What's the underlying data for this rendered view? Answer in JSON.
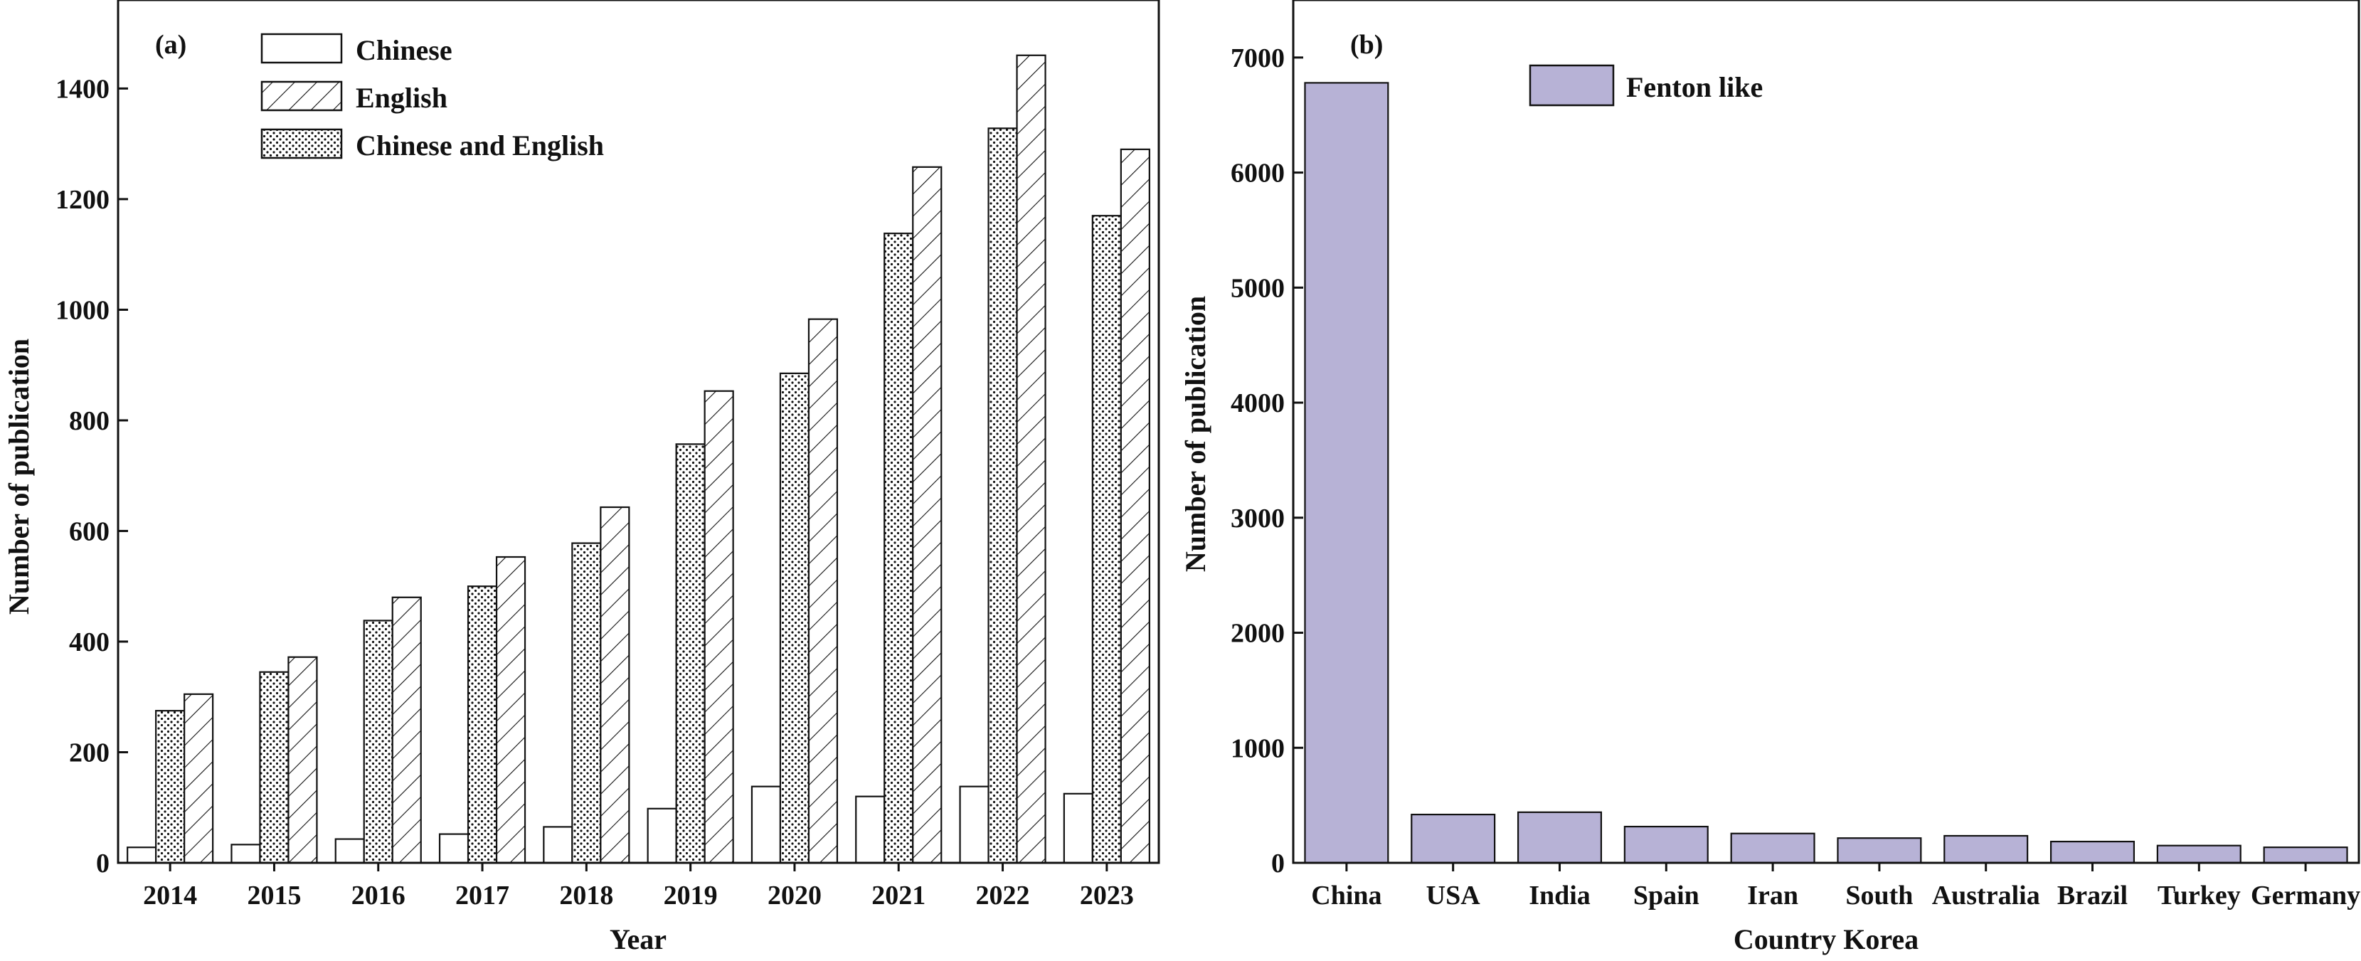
{
  "chart_data": [
    {
      "type": "bar",
      "panel_label": "(a)",
      "xlabel": "Year",
      "ylabel": "Number of publication",
      "ylim": [
        0,
        1560
      ],
      "yticks": [
        0,
        200,
        400,
        600,
        800,
        1000,
        1200,
        1400
      ],
      "grid": false,
      "legend_position": "top-left",
      "categories": [
        "2014",
        "2015",
        "2016",
        "2017",
        "2018",
        "2019",
        "2020",
        "2021",
        "2022",
        "2023"
      ],
      "series": [
        {
          "name": "Chinese",
          "pattern": "blank",
          "values": [
            28,
            33,
            43,
            52,
            65,
            98,
            138,
            120,
            138,
            125
          ]
        },
        {
          "name": "Chinese and English",
          "pattern": "dots",
          "values": [
            275,
            345,
            438,
            500,
            578,
            757,
            885,
            1138,
            1328,
            1170
          ]
        },
        {
          "name": "English",
          "pattern": "hatch",
          "values": [
            305,
            372,
            480,
            553,
            643,
            853,
            983,
            1258,
            1460,
            1290
          ]
        }
      ],
      "legend_items": [
        "Chinese",
        "English",
        "Chinese and English"
      ]
    },
    {
      "type": "bar",
      "panel_label": "(b)",
      "xlabel": "Country Korea",
      "ylabel": "Number of publication",
      "ylim": [
        0,
        7500
      ],
      "yticks": [
        0,
        1000,
        2000,
        3000,
        4000,
        5000,
        6000,
        7000
      ],
      "grid": false,
      "legend_position": "top-center",
      "color": "#b7b2d6",
      "categories": [
        "China",
        "USA",
        "India",
        "Spain",
        "Iran",
        "South",
        "Australia",
        "Brazil",
        "Turkey",
        "Germany"
      ],
      "series": [
        {
          "name": "Fenton like",
          "values": [
            6780,
            420,
            440,
            315,
            255,
            215,
            235,
            185,
            150,
            135
          ]
        }
      ]
    }
  ]
}
